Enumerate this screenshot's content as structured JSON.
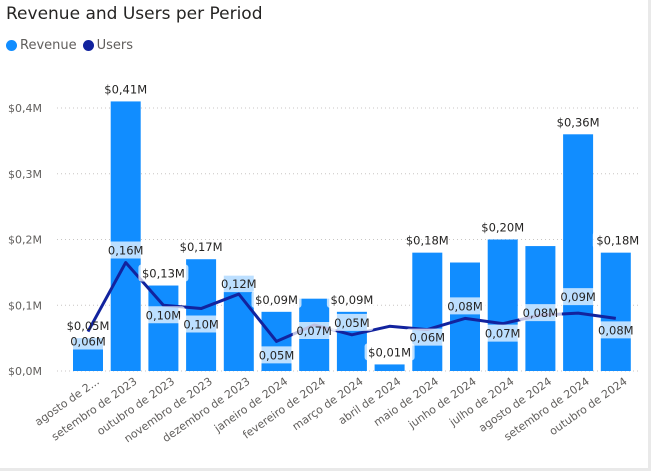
{
  "chart_data": {
    "type": "bar+line",
    "title": "Revenue and Users per Period",
    "xlabel": "",
    "ylabel": "",
    "ylim": [
      0,
      0.4
    ],
    "y_unit": "M",
    "yticks": [
      "$0,0M",
      "$0,1M",
      "$0,2M",
      "$0,3M",
      "$0,4M"
    ],
    "ytick_values": [
      0,
      0.1,
      0.2,
      0.3,
      0.4
    ],
    "grid": true,
    "legend_position": "top-left",
    "categories": [
      "agosto de 2...",
      "setembro de 2023",
      "outubro de 2023",
      "novembro de 2023",
      "dezembro de 2023",
      "janeiro de 2024",
      "fevereiro de 2024",
      "março de 2024",
      "abril de 2024",
      "maio de 2024",
      "junho de 2024",
      "julho de 2024",
      "agosto de 2024",
      "setembro de 2024",
      "outubro de 2024"
    ],
    "series": [
      {
        "name": "Revenue",
        "type": "bar",
        "color": "#118dff",
        "values": [
          0.05,
          0.41,
          0.13,
          0.17,
          0.145,
          0.09,
          0.11,
          0.09,
          0.01,
          0.18,
          0.165,
          0.2,
          0.19,
          0.36,
          0.18
        ],
        "labels": [
          "$0,05M",
          "$0,41M",
          "$0,13M",
          "$0,17M",
          "",
          "$0,09M",
          "",
          "$0,09M",
          "$0,01M",
          "$0,18M",
          "",
          "$0,20M",
          "",
          "$0,36M",
          "$0,18M"
        ]
      },
      {
        "name": "Users",
        "type": "line",
        "color": "#12239e",
        "values": [
          0.06,
          0.165,
          0.1,
          0.095,
          0.117,
          0.045,
          0.07,
          0.055,
          0.068,
          0.063,
          0.08,
          0.072,
          0.085,
          0.088,
          0.08
        ],
        "labels": [
          "0,06M",
          "0,16M",
          "0,10M",
          "0,10M",
          "0,12M",
          "0,05M",
          "0,07M",
          "0,05M",
          "",
          "0,06M",
          "0,08M",
          "0,07M",
          "0,08M",
          "0,09M",
          "0,08M"
        ]
      }
    ]
  },
  "legend": [
    {
      "label": "Revenue",
      "color": "#118dff"
    },
    {
      "label": "Users",
      "color": "#12239e"
    }
  ]
}
